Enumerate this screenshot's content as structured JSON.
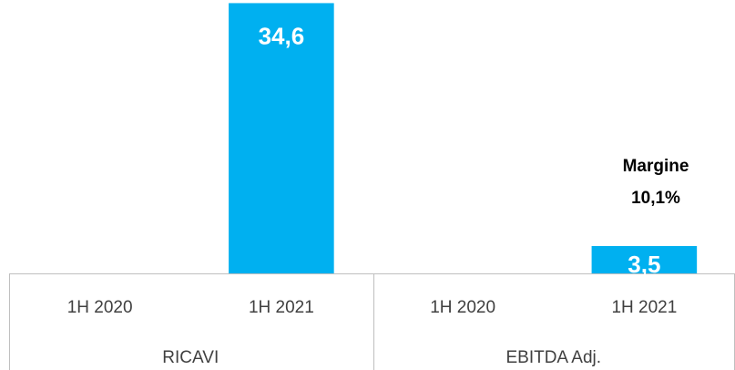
{
  "chart_data": {
    "type": "bar",
    "categories": [
      "1H 2020",
      "1H 2021",
      "1H 2020",
      "1H 2021"
    ],
    "groups": [
      "RICAVI",
      "EBITDA Adj."
    ],
    "values": [
      null,
      34.6,
      null,
      3.5
    ],
    "value_labels": [
      null,
      "34,6",
      null,
      "3,5"
    ],
    "color": "#00b0f0",
    "ylim": [
      0,
      35
    ],
    "annotation": [
      "Margine",
      "10,1%"
    ]
  }
}
